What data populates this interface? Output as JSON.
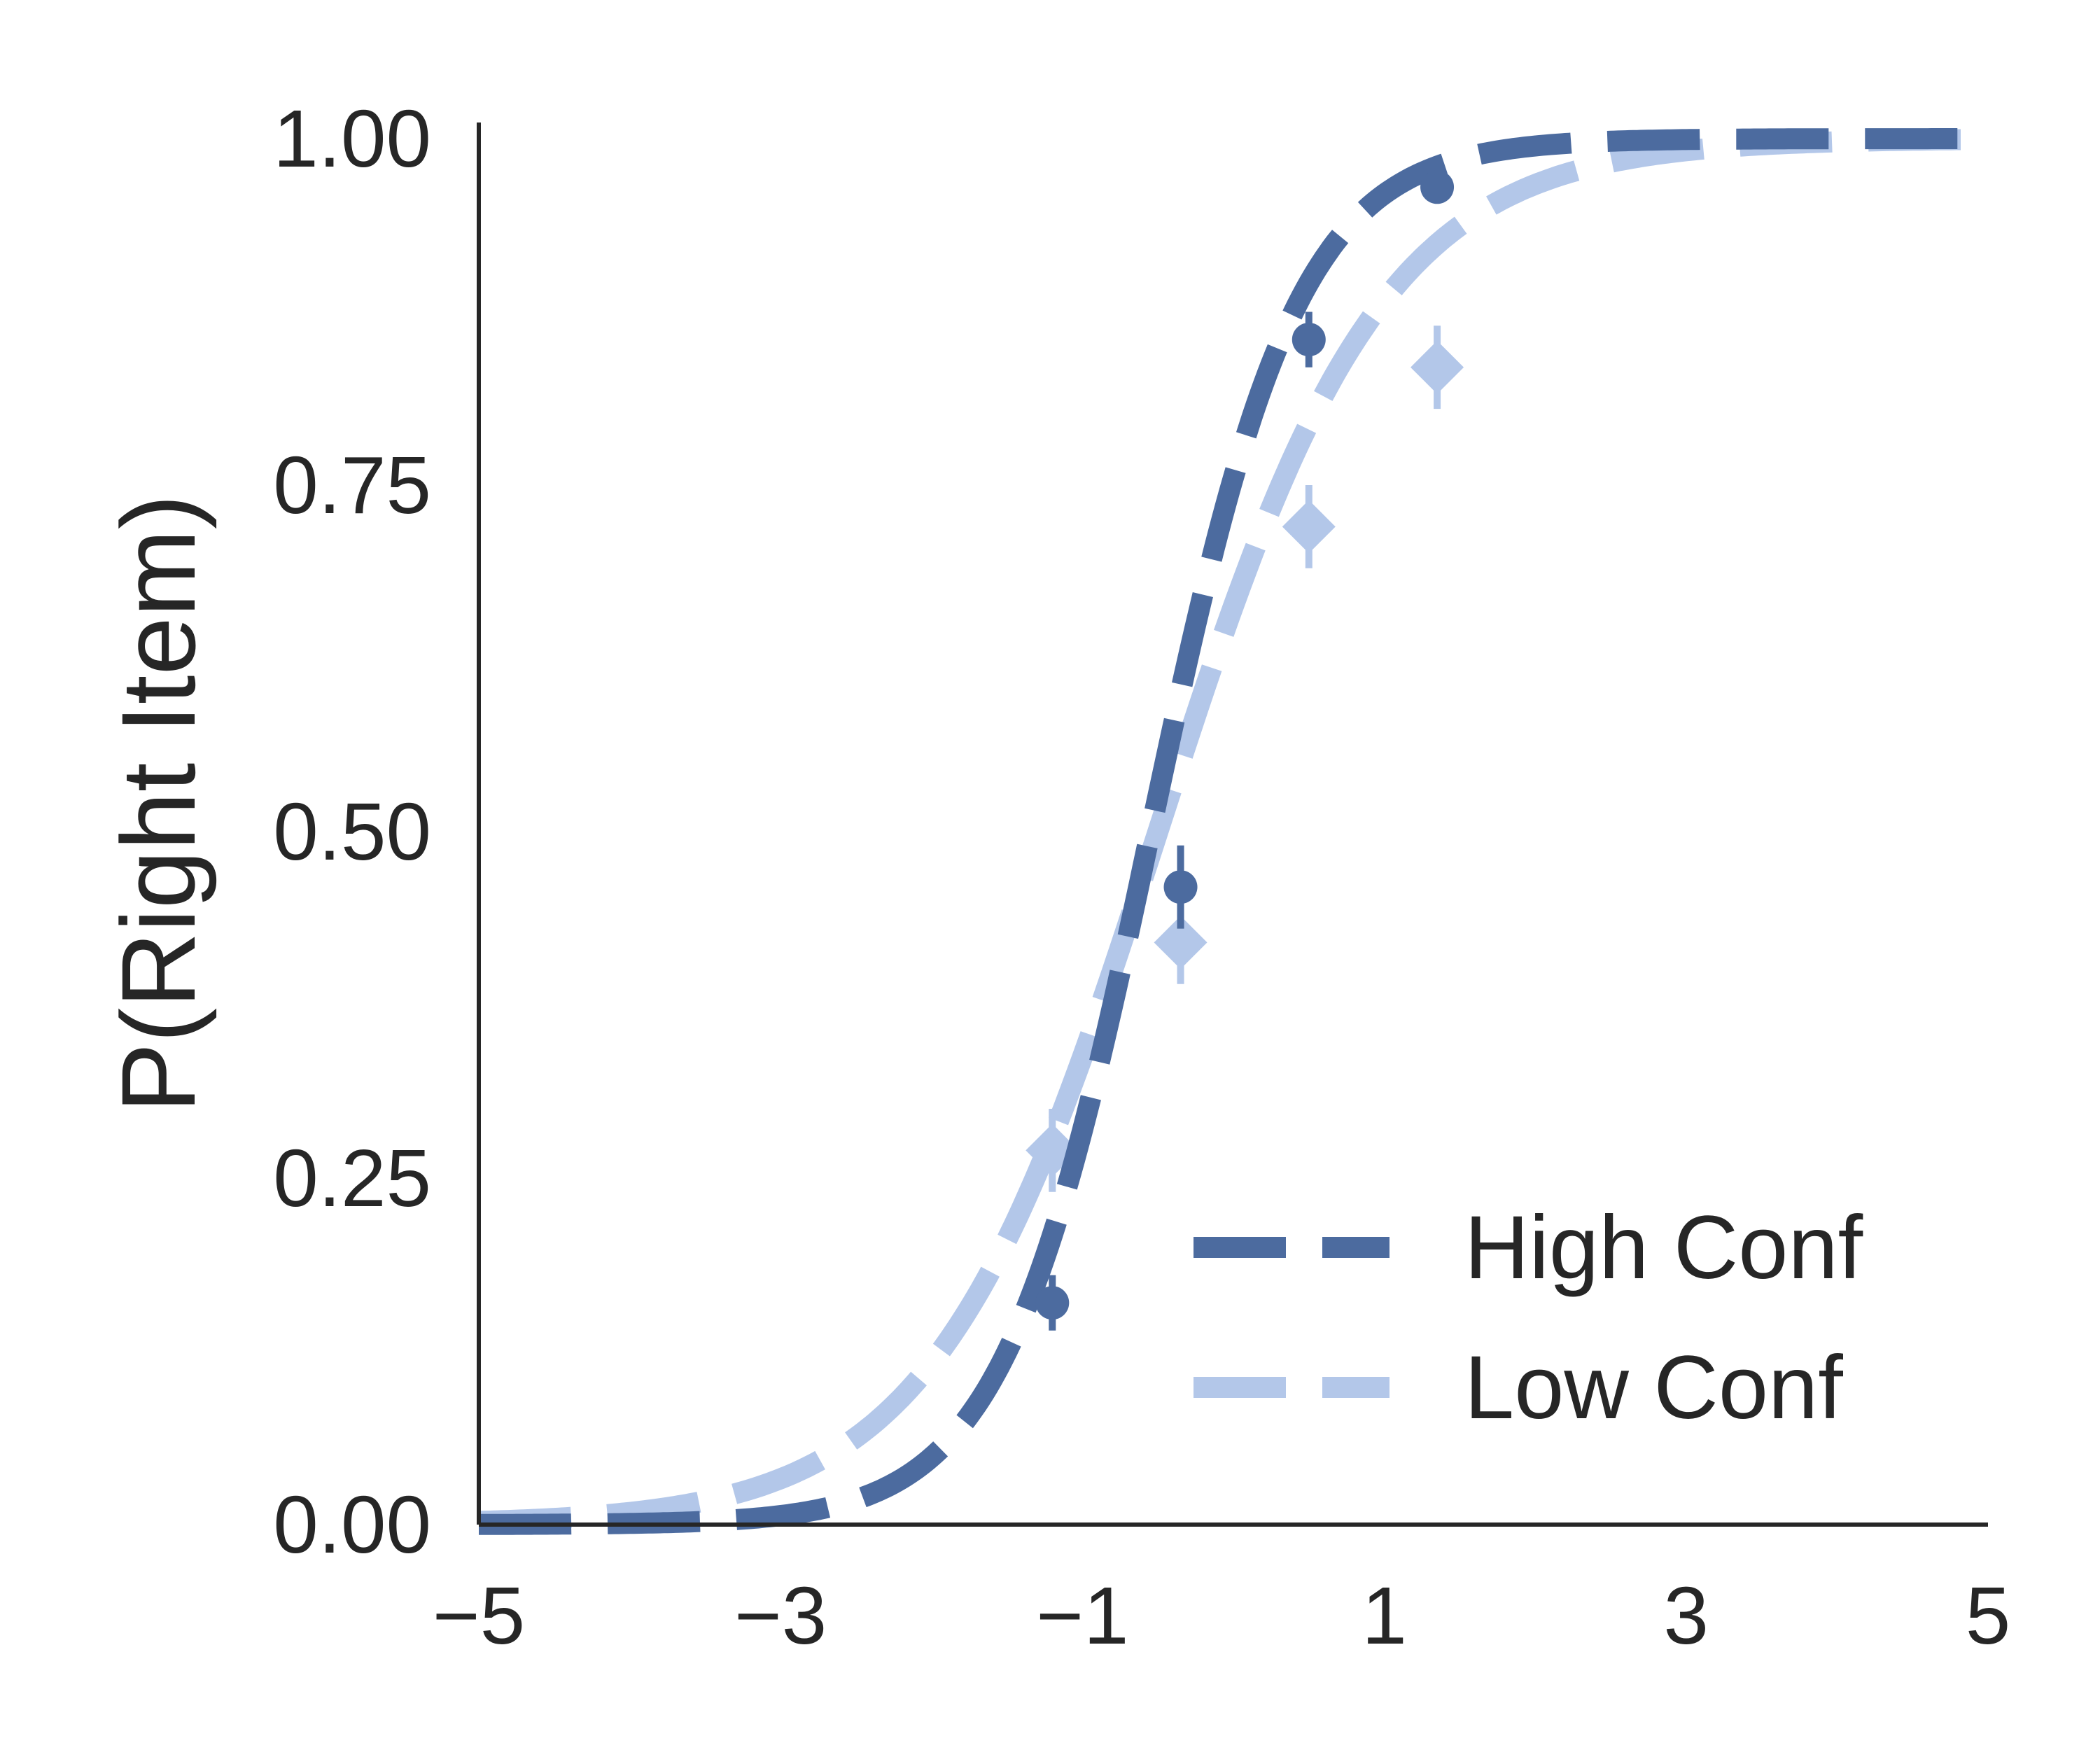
{
  "chart_data": {
    "type": "line",
    "title": "",
    "xlabel": "",
    "ylabel": "P(Right Item)",
    "xlim": [
      -5,
      5
    ],
    "ylim": [
      0,
      1
    ],
    "x_ticks": [
      -5,
      -3,
      -1,
      1,
      3,
      5
    ],
    "x_tick_labels": [
      "−5",
      "−3",
      "−1",
      "1",
      "3",
      "5"
    ],
    "y_ticks": [
      0,
      0.25,
      0.5,
      0.75,
      1
    ],
    "y_tick_labels": [
      "0.00",
      "0.25",
      "0.50",
      "0.75",
      "1.00"
    ],
    "grid": false,
    "legend_position": "lower-right",
    "series": [
      {
        "name": "High Conf",
        "color": "#4c6b9f",
        "line_style": "dashed",
        "fit": {
          "midpoint": -0.55,
          "slope": 2.05
        },
        "points": [
          {
            "x": -1.2,
            "y": 0.16,
            "err": 0.02
          },
          {
            "x": -0.35,
            "y": 0.46,
            "err": 0.03
          },
          {
            "x": 0.5,
            "y": 0.855,
            "err": 0.02
          },
          {
            "x": 1.35,
            "y": 0.965,
            "err": 0.01
          }
        ]
      },
      {
        "name": "Low Conf",
        "color": "#b3c7e9",
        "line_style": "dashed",
        "fit": {
          "midpoint": -0.5,
          "slope": 1.35
        },
        "points": [
          {
            "x": -1.2,
            "y": 0.27,
            "err": 0.03
          },
          {
            "x": -0.35,
            "y": 0.42,
            "err": 0.03
          },
          {
            "x": 0.5,
            "y": 0.72,
            "err": 0.03
          },
          {
            "x": 1.35,
            "y": 0.835,
            "err": 0.03
          }
        ]
      }
    ]
  }
}
